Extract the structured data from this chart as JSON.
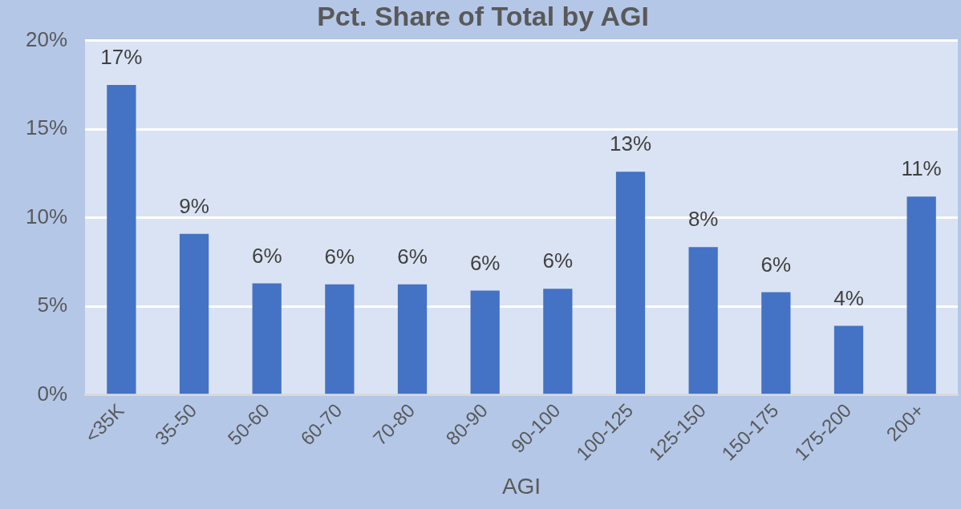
{
  "chart_data": {
    "type": "bar",
    "title": "Pct. Share of Total by AGI",
    "xlabel": "AGI",
    "categories": [
      "<35K",
      "35-50",
      "50-60",
      "60-70",
      "70-80",
      "80-90",
      "90-100",
      "100-125",
      "125-150",
      "150-175",
      "175-200",
      "200+"
    ],
    "values": [
      17.5,
      9.1,
      6.3,
      6.25,
      6.25,
      5.9,
      6.0,
      12.6,
      8.35,
      5.8,
      3.9,
      11.2
    ],
    "value_labels": [
      "17%",
      "9%",
      "6%",
      "6%",
      "6%",
      "6%",
      "6%",
      "13%",
      "8%",
      "6%",
      "4%",
      "11%"
    ],
    "color": "#4472c4",
    "ylim": [
      0,
      20
    ],
    "yticks": [
      {
        "value": 0,
        "label": "0%"
      },
      {
        "value": 5,
        "label": "5%"
      },
      {
        "value": 10,
        "label": "10%"
      },
      {
        "value": 15,
        "label": "15%"
      },
      {
        "value": 20,
        "label": "20%"
      }
    ],
    "grid": "y",
    "legend": false
  }
}
